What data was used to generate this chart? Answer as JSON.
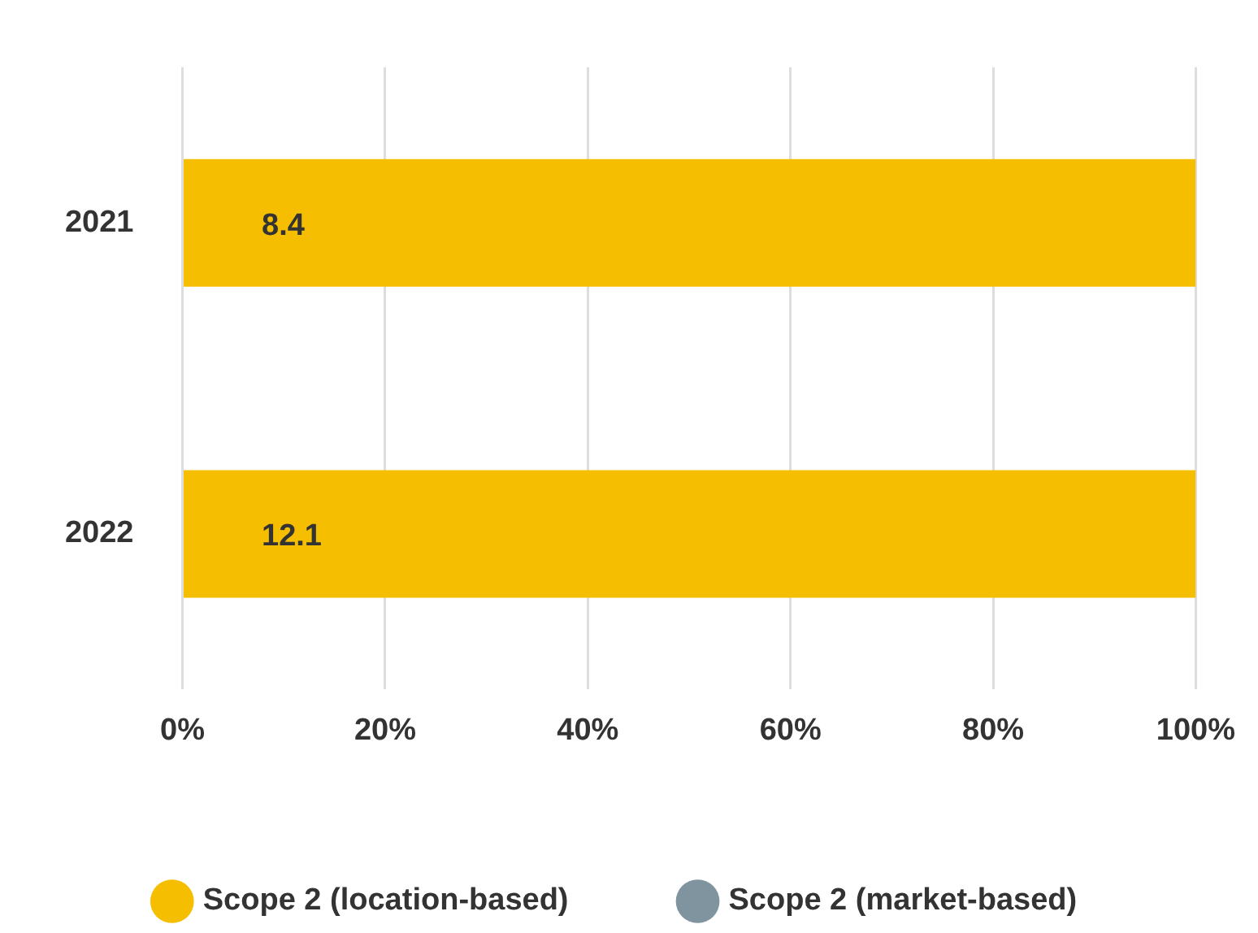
{
  "chart_data": {
    "type": "bar",
    "orientation": "horizontal",
    "stacked": true,
    "categories": [
      "2021",
      "2022"
    ],
    "series": [
      {
        "name": "Scope 2 (location-based)",
        "color": "#f6be00",
        "values": [
          100,
          100
        ]
      },
      {
        "name": "Scope 2 (market-based)",
        "color": "#7f949e",
        "values": [
          0,
          0
        ]
      }
    ],
    "xlim": [
      0,
      100
    ],
    "xticks": [
      {
        "value": 0,
        "label": "0%"
      },
      {
        "value": 20,
        "label": "20%"
      },
      {
        "value": 40,
        "label": "40%"
      },
      {
        "value": 60,
        "label": "60%"
      },
      {
        "value": 80,
        "label": "80%"
      },
      {
        "value": 100,
        "label": "100%"
      }
    ],
    "annotations": [
      "8.4",
      "12.1"
    ],
    "grid": "x",
    "legend": "bottom"
  }
}
